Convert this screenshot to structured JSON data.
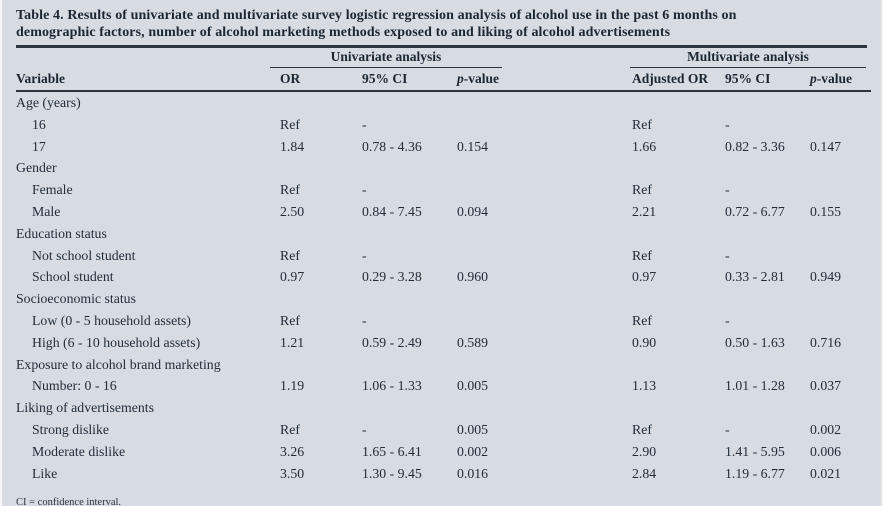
{
  "table": {
    "title_lines": [
      "Table 4. Results of univariate and multivariate survey logistic regression analysis of alcohol use in the past 6 months on",
      "demographic factors, number of alcohol marketing methods exposed to and liking of alcohol advertisements"
    ],
    "group_headers": [
      "Univariate analysis",
      "Multivariate analysis"
    ],
    "col_headers": [
      "Variable",
      "OR",
      "95% CI",
      "p-value",
      "Adjusted OR",
      "95% CI",
      "p-value"
    ],
    "rows": [
      {
        "label": "Age (years)",
        "indent": 0,
        "cells": [
          "",
          "",
          "",
          "",
          "",
          ""
        ]
      },
      {
        "label": "16",
        "indent": 1,
        "cells": [
          "Ref",
          "-",
          "",
          "Ref",
          "-",
          ""
        ]
      },
      {
        "label": "17",
        "indent": 1,
        "cells": [
          "1.84",
          "0.78 - 4.36",
          "0.154",
          "1.66",
          "0.82 - 3.36",
          "0.147"
        ]
      },
      {
        "label": "Gender",
        "indent": 0,
        "cells": [
          "",
          "",
          "",
          "",
          "",
          ""
        ]
      },
      {
        "label": "Female",
        "indent": 1,
        "cells": [
          "Ref",
          "-",
          "",
          "Ref",
          "-",
          ""
        ]
      },
      {
        "label": "Male",
        "indent": 1,
        "cells": [
          "2.50",
          "0.84 - 7.45",
          "0.094",
          "2.21",
          "0.72 - 6.77",
          "0.155"
        ]
      },
      {
        "label": "Education status",
        "indent": 0,
        "cells": [
          "",
          "",
          "",
          "",
          "",
          ""
        ]
      },
      {
        "label": "Not school student",
        "indent": 1,
        "cells": [
          "Ref",
          "-",
          "",
          "Ref",
          "-",
          ""
        ]
      },
      {
        "label": "School student",
        "indent": 1,
        "cells": [
          "0.97",
          "0.29 - 3.28",
          "0.960",
          "0.97",
          "0.33 - 2.81",
          "0.949"
        ]
      },
      {
        "label": "Socioeconomic status",
        "indent": 0,
        "cells": [
          "",
          "",
          "",
          "",
          "",
          ""
        ]
      },
      {
        "label": "Low (0 - 5 household assets)",
        "indent": 1,
        "cells": [
          "Ref",
          "-",
          "",
          "Ref",
          "-",
          ""
        ]
      },
      {
        "label": "High (6 - 10 household assets)",
        "indent": 1,
        "cells": [
          "1.21",
          "0.59 - 2.49",
          "0.589",
          "0.90",
          "0.50 - 1.63",
          "0.716"
        ]
      },
      {
        "label": "Exposure to alcohol brand marketing",
        "indent": 0,
        "cells": [
          "",
          "",
          "",
          "",
          "",
          ""
        ]
      },
      {
        "label": "Number: 0 - 16",
        "indent": 1,
        "cells": [
          "1.19",
          "1.06 - 1.33",
          "0.005",
          "1.13",
          "1.01 - 1.28",
          "0.037"
        ]
      },
      {
        "label": "Liking of advertisements",
        "indent": 0,
        "cells": [
          "",
          "",
          "",
          "",
          "",
          ""
        ]
      },
      {
        "label": "Strong dislike",
        "indent": 1,
        "cells": [
          "Ref",
          "-",
          "0.005",
          "Ref",
          "-",
          "0.002"
        ]
      },
      {
        "label": "Moderate dislike",
        "indent": 1,
        "cells": [
          "3.26",
          "1.65 - 6.41",
          "0.002",
          "2.90",
          "1.41 - 5.95",
          "0.006"
        ]
      },
      {
        "label": "Like",
        "indent": 1,
        "cells": [
          "3.50",
          "1.30 - 9.45",
          "0.016",
          "2.84",
          "1.19 - 6.77",
          "0.021"
        ]
      }
    ],
    "footnote": "CI = confidence interval."
  },
  "colors": {
    "background": "#d7dce3",
    "text": "#232d38",
    "rule": "#2a333e"
  }
}
